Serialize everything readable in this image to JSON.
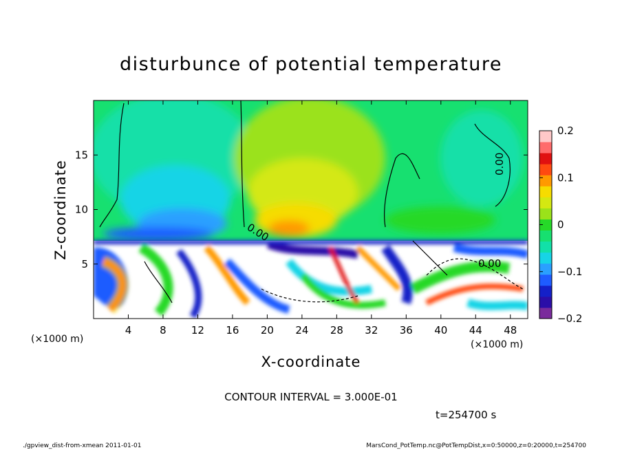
{
  "chart_data": {
    "type": "heatmap",
    "title": "disturbunce of potential temperature",
    "xlabel": "X-coordinate",
    "ylabel": "Z-coordinate",
    "x_unit": "(×1000 m)",
    "y_unit": "(×1000 m)",
    "xlim": [
      0,
      50
    ],
    "ylim": [
      0,
      20
    ],
    "x_ticks": [
      4,
      8,
      12,
      16,
      20,
      24,
      28,
      32,
      36,
      40,
      44,
      48
    ],
    "y_ticks": [
      5,
      10,
      15
    ],
    "colorbar": {
      "min": -0.2,
      "max": 0.2,
      "tick_labels": [
        "0.2",
        "0.1",
        "0",
        "−0.1",
        "−0.2"
      ],
      "tick_values": [
        0.2,
        0.1,
        0,
        -0.1,
        -0.2
      ],
      "colors": [
        "#7a2b9c",
        "#2b0ea8",
        "#1420c8",
        "#1e5cff",
        "#2aa0ff",
        "#17d4e6",
        "#12e0a8",
        "#17e070",
        "#26d928",
        "#9be21a",
        "#d4e812",
        "#f6dc00",
        "#ff9a00",
        "#ff4a10",
        "#e01010",
        "#ff6b6b",
        "#ffc8c8"
      ]
    },
    "contour_labels": [
      "0.00",
      "0.00",
      "0.00"
    ],
    "contour_interval_text": "CONTOUR INTERVAL = 3.000E-01",
    "time_text": "t=254700 s",
    "footer_left": "./gpview_dist-from-xmean   2011-01-01",
    "footer_right": "MarsCond_PotTemp.nc@PotTempDist,x=0:50000,z=0:20000,t=254700"
  }
}
